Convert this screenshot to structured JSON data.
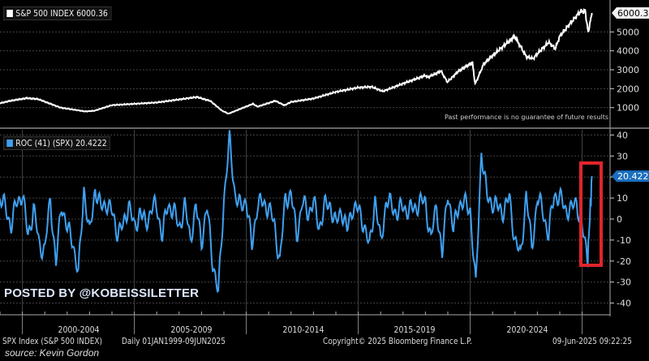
{
  "chart_data": [
    {
      "type": "line",
      "title": "S&P 500 INDEX",
      "legend_label": "S&P 500 INDEX 6000.36",
      "last_value_label": "6000.36",
      "color": "#ffffff",
      "ylim": [
        0,
        6700
      ],
      "yticks": [
        1000,
        2000,
        3000,
        4000,
        5000
      ],
      "xlim": [
        1999,
        2025.6
      ],
      "x": [
        1999,
        1999.5,
        2000.2,
        2000.7,
        2001.7,
        2002.8,
        2003.2,
        2004,
        2005,
        2006,
        2007.8,
        2008.4,
        2008.9,
        2009.2,
        2010.3,
        2010.5,
        2011.3,
        2011.7,
        2012,
        2013,
        2014,
        2015,
        2015.6,
        2016.1,
        2017,
        2018,
        2018.1,
        2018.7,
        2018.98,
        2019.5,
        2020.1,
        2020.22,
        2020.6,
        2021,
        2021.99,
        2022.5,
        2022.8,
        2023,
        2023.5,
        2023.8,
        2024,
        2024.5,
        2024.9,
        2025.13,
        2025.27,
        2025.44
      ],
      "values": [
        1230,
        1370,
        1500,
        1450,
        1000,
        800,
        830,
        1130,
        1200,
        1270,
        1560,
        1350,
        850,
        680,
        1200,
        1050,
        1360,
        1120,
        1300,
        1480,
        1830,
        2060,
        2100,
        1860,
        2270,
        2700,
        2600,
        2930,
        2350,
        2950,
        3380,
        2240,
        3300,
        3750,
        4770,
        3700,
        3580,
        3850,
        4450,
        4120,
        4770,
        5500,
        6050,
        6120,
        4980,
        6000.36
      ],
      "annotation": "Past performance is no guarantee of future results"
    },
    {
      "type": "line",
      "title": "ROC (41) (SPX)",
      "legend_label": "ROC (41) (SPX) 20.4222",
      "last_value_label": "20.4222",
      "color": "#3fa0f0",
      "ylim": [
        -43,
        43
      ],
      "yticks": [
        40,
        30,
        20,
        10,
        0,
        -10,
        -20,
        -30,
        -40
      ],
      "xlim": [
        1999,
        2025.6
      ],
      "x_start": 1999,
      "x_step": 0.25,
      "x_last": 2025.44,
      "values": [
        10,
        5,
        -3,
        8,
        12,
        -8,
        5,
        -12,
        -15,
        10,
        -22,
        8,
        -5,
        -10,
        -27,
        15,
        -8,
        15,
        5,
        8,
        3,
        -6,
        -4,
        8,
        -5,
        4,
        -3,
        5,
        6,
        -8,
        7,
        4,
        -4,
        6,
        -9,
        5,
        -10,
        5,
        -20,
        -36,
        10,
        37,
        12,
        5,
        10,
        -14,
        8,
        7,
        6,
        -3,
        -20,
        10,
        12,
        -8,
        8,
        3,
        8,
        -4,
        6,
        7,
        -3,
        5,
        -6,
        6,
        4,
        -2,
        -14,
        10,
        -12,
        9,
        6,
        3,
        6,
        4,
        5,
        8,
        8,
        -10,
        7,
        -18,
        14,
        -6,
        8,
        7,
        5,
        -33,
        33,
        10,
        8,
        5,
        4,
        10,
        -10,
        -18,
        12,
        -14,
        10,
        4,
        -8,
        12,
        10,
        5,
        4,
        9,
        -5,
        -18,
        20.4222
      ],
      "highlight": "red box around 2025 drop and rebound"
    }
  ],
  "x_axis": {
    "labels": [
      "2000-2004",
      "2005-2009",
      "2010-2014",
      "2015-2019",
      "2020-2024"
    ],
    "separators": [
      2000,
      2005,
      2010,
      2015,
      2020,
      2025
    ]
  },
  "footer": {
    "ticker": "SPX Index (S&P 500 INDEX)",
    "range": "Daily 01JAN1999-09JUN2025",
    "copyright": "Copyright© 2025 Bloomberg Finance L.P.",
    "timestamp": "09-Jun-2025 09:22:25",
    "source": "source: Kevin Gordon"
  },
  "watermark": "POSTED BY @KOBEISSILETTER",
  "colors": {
    "highlight": "#e0252b",
    "grid": "#555555"
  }
}
